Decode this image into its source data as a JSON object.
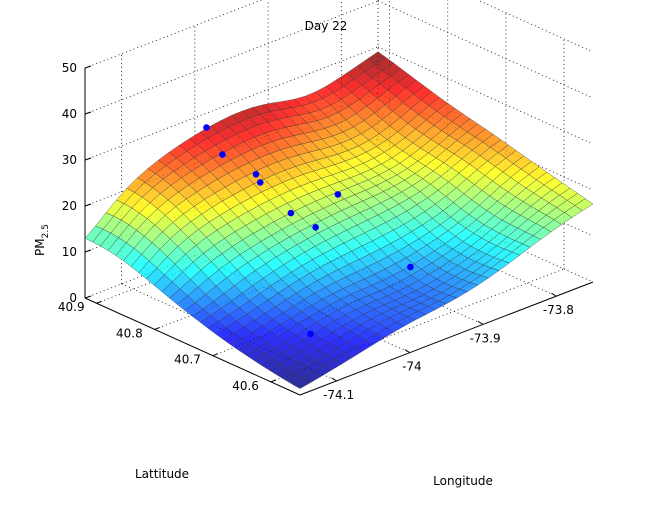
{
  "chart_data": {
    "type": "surface3d",
    "title": "Day 22",
    "xlabel": "Longitude",
    "ylabel": "Lattitude",
    "zlabel_base": "PM",
    "zlabel_sub": "2.5",
    "xlim": [
      -74.15,
      -73.75
    ],
    "ylim": [
      40.55,
      40.92
    ],
    "zlim": [
      0,
      50
    ],
    "xticks": [
      -74.1,
      -74.0,
      -73.9,
      -73.8
    ],
    "xtick_labels": [
      "-74.1",
      "-74",
      "-73.9",
      "-73.8"
    ],
    "yticks": [
      40.6,
      40.7,
      40.8,
      40.9
    ],
    "ytick_labels": [
      "40.6",
      "40.7",
      "40.8",
      "40.9"
    ],
    "zticks": [
      0,
      10,
      20,
      30,
      40,
      50
    ],
    "ztick_labels": [
      "0",
      "10",
      "20",
      "30",
      "40",
      "50"
    ],
    "grid": true,
    "colormap": "jet",
    "surface": {
      "corners": [
        {
          "x": -74.15,
          "y": 40.92,
          "z": 11
        },
        {
          "x": -73.75,
          "y": 40.92,
          "z": 29
        },
        {
          "x": -73.75,
          "y": 40.55,
          "z": 17
        },
        {
          "x": -74.15,
          "y": 40.55,
          "z": 2
        }
      ]
    },
    "points": [
      {
        "x": -74.0,
        "y": 40.9,
        "z": 29
      },
      {
        "x": -74.01,
        "y": 40.86,
        "z": 26
      },
      {
        "x": -73.98,
        "y": 40.84,
        "z": 21
      },
      {
        "x": -73.99,
        "y": 40.82,
        "z": 21
      },
      {
        "x": -73.98,
        "y": 40.78,
        "z": 16
      },
      {
        "x": -73.97,
        "y": 40.75,
        "z": 14
      },
      {
        "x": -73.9,
        "y": 40.8,
        "z": 14
      },
      {
        "x": -73.92,
        "y": 40.65,
        "z": 8
      },
      {
        "x": -74.08,
        "y": 40.62,
        "z": 5
      }
    ],
    "point_color": "#0000ff",
    "edge_color": "#3a3a3a"
  }
}
